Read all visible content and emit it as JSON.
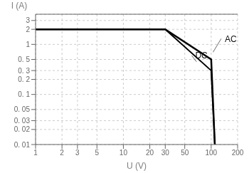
{
  "chart_data": {
    "type": "line",
    "xlabel": "U (V)",
    "ylabel": "I (A)",
    "log": true,
    "grid": true,
    "x": [
      1,
      30,
      100,
      110
    ],
    "series": [
      {
        "color": "#000000",
        "values": [
          2.0,
          2.0,
          0.5,
          0.01
        ]
      },
      {
        "color": "#000000",
        "values": [
          2.0,
          2.0,
          0.3,
          0.01
        ]
      }
    ],
    "xlim": [
      1,
      200
    ],
    "ylim": [
      0.01,
      4.0
    ],
    "xticks": [
      1,
      2,
      3,
      5,
      10,
      20,
      30,
      50,
      100,
      200
    ],
    "yticks": [
      {
        "value": 0.01,
        "label": "0. 01"
      },
      {
        "value": 0.02,
        "label": "0. 02"
      },
      {
        "value": 0.03,
        "label": "0. 03"
      },
      {
        "value": 0.05,
        "label": "0. 05"
      },
      {
        "value": 0.1,
        "label": "0. 1"
      },
      {
        "value": 0.2,
        "label": "0. 2"
      },
      {
        "value": 0.3,
        "label": "0. 3"
      },
      {
        "value": 0.5,
        "label": "0. 5"
      },
      1,
      2,
      3
    ],
    "annotations": [
      {
        "text": "AC",
        "x": 130,
        "y": 1.3,
        "arrow_x": 105,
        "arrow_y": 0.7
      },
      {
        "text": "DC",
        "x": 60,
        "y": 0.6,
        "arrow_x": 68,
        "arrow_y": 0.45
      }
    ]
  }
}
